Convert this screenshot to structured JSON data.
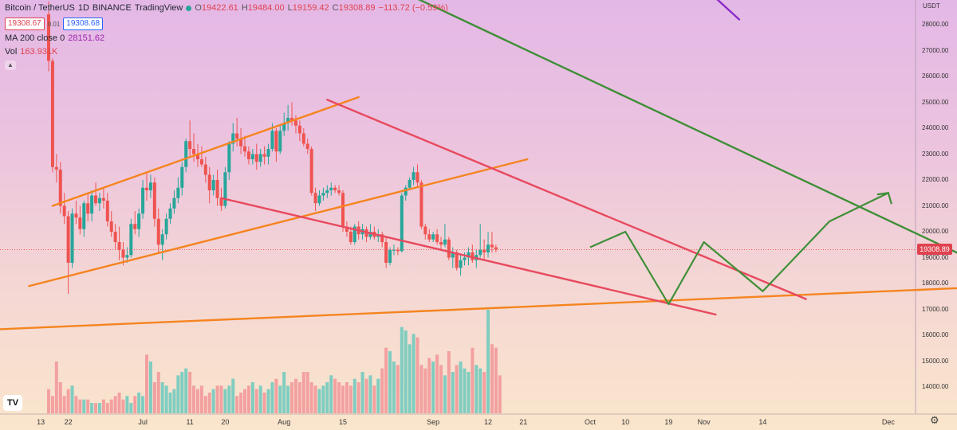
{
  "header": {
    "symbol": "Bitcoin / TetherUS",
    "interval": "1D",
    "exchange": "BINANCE",
    "source": "TradingView",
    "o_label": "O",
    "o_value": "19422.61",
    "h_label": "H",
    "h_value": "19484.00",
    "l_label": "L",
    "l_value": "19159.42",
    "c_label": "C",
    "c_value": "19308.89",
    "change": "−113.72 (−0.59%)",
    "bid": "19308.67",
    "spread": "0.01",
    "ask": "19308.68",
    "ma_label": "MA 200 close 0",
    "ma_value": "28151.62",
    "vol_label": "Vol",
    "vol_value": "163.931K",
    "collapse_icon": "chevron-up-icon"
  },
  "axis": {
    "unit": "USDT",
    "price_tag": "19308.89",
    "y_ticks": [
      "28000.00",
      "27000.00",
      "26000.00",
      "25000.00",
      "24000.00",
      "23000.00",
      "22000.00",
      "21000.00",
      "20000.00",
      "19000.00",
      "18000.00",
      "17000.00",
      "16000.00",
      "15000.00",
      "14000.00"
    ],
    "x_ticks": [
      "13",
      "22",
      "Jul",
      "11",
      "20",
      "Aug",
      "15",
      "Sep",
      "12",
      "21",
      "Oct",
      "10",
      "19",
      "Nov",
      "14",
      "Dec"
    ]
  },
  "chart_data": {
    "type": "candlestick",
    "symbol": "BTC/USDT",
    "interval": "1D",
    "ylim": [
      13300,
      29200
    ],
    "y_scale": "linear",
    "grid": false,
    "last_price": 19308.89,
    "candles": [
      {
        "o": 28400,
        "h": 28900,
        "l": 26200,
        "c": 26600
      },
      {
        "o": 26600,
        "h": 26700,
        "l": 22300,
        "c": 22500
      },
      {
        "o": 22500,
        "h": 23000,
        "l": 21900,
        "c": 22400
      },
      {
        "o": 22400,
        "h": 22700,
        "l": 20700,
        "c": 21000
      },
      {
        "o": 21000,
        "h": 21500,
        "l": 20300,
        "c": 20600
      },
      {
        "o": 20600,
        "h": 20800,
        "l": 17600,
        "c": 18800
      },
      {
        "o": 18800,
        "h": 20900,
        "l": 18600,
        "c": 20700
      },
      {
        "o": 20700,
        "h": 21200,
        "l": 20300,
        "c": 20550
      },
      {
        "o": 20550,
        "h": 21000,
        "l": 19900,
        "c": 20100
      },
      {
        "o": 20100,
        "h": 21200,
        "l": 19800,
        "c": 21100
      },
      {
        "o": 21100,
        "h": 21500,
        "l": 20400,
        "c": 20700
      },
      {
        "o": 20700,
        "h": 21600,
        "l": 20400,
        "c": 21400
      },
      {
        "o": 21400,
        "h": 21900,
        "l": 21000,
        "c": 21100
      },
      {
        "o": 21100,
        "h": 21500,
        "l": 20800,
        "c": 21300
      },
      {
        "o": 21300,
        "h": 21700,
        "l": 20900,
        "c": 21200
      },
      {
        "o": 21200,
        "h": 21500,
        "l": 20200,
        "c": 20400
      },
      {
        "o": 20400,
        "h": 20800,
        "l": 19800,
        "c": 20000
      },
      {
        "o": 20000,
        "h": 20300,
        "l": 19300,
        "c": 19600
      },
      {
        "o": 19600,
        "h": 20200,
        "l": 18900,
        "c": 19300
      },
      {
        "o": 19300,
        "h": 19600,
        "l": 18700,
        "c": 19000
      },
      {
        "o": 19000,
        "h": 19400,
        "l": 18800,
        "c": 19100
      },
      {
        "o": 19100,
        "h": 20500,
        "l": 19000,
        "c": 20300
      },
      {
        "o": 20300,
        "h": 20800,
        "l": 19900,
        "c": 20100
      },
      {
        "o": 20100,
        "h": 20900,
        "l": 19800,
        "c": 20700
      },
      {
        "o": 20700,
        "h": 22000,
        "l": 20500,
        "c": 21700
      },
      {
        "o": 21700,
        "h": 22300,
        "l": 21200,
        "c": 21600
      },
      {
        "o": 21600,
        "h": 22200,
        "l": 21300,
        "c": 21900
      },
      {
        "o": 21900,
        "h": 22100,
        "l": 20200,
        "c": 20500
      },
      {
        "o": 20500,
        "h": 20900,
        "l": 19200,
        "c": 19500
      },
      {
        "o": 19500,
        "h": 20100,
        "l": 18900,
        "c": 19900
      },
      {
        "o": 19900,
        "h": 20700,
        "l": 19700,
        "c": 20500
      },
      {
        "o": 20500,
        "h": 21100,
        "l": 20300,
        "c": 20900
      },
      {
        "o": 20900,
        "h": 21600,
        "l": 20700,
        "c": 21300
      },
      {
        "o": 21300,
        "h": 22100,
        "l": 21100,
        "c": 21700
      },
      {
        "o": 21700,
        "h": 22700,
        "l": 21400,
        "c": 22500
      },
      {
        "o": 22500,
        "h": 23600,
        "l": 22300,
        "c": 23500
      },
      {
        "o": 23500,
        "h": 24300,
        "l": 22900,
        "c": 23200
      },
      {
        "o": 23200,
        "h": 23800,
        "l": 22700,
        "c": 23000
      },
      {
        "o": 23000,
        "h": 23400,
        "l": 22500,
        "c": 22800
      },
      {
        "o": 22800,
        "h": 23300,
        "l": 22500,
        "c": 22600
      },
      {
        "o": 22600,
        "h": 22900,
        "l": 21900,
        "c": 22200
      },
      {
        "o": 22200,
        "h": 22500,
        "l": 21100,
        "c": 21600
      },
      {
        "o": 21600,
        "h": 22200,
        "l": 21400,
        "c": 22000
      },
      {
        "o": 22000,
        "h": 22400,
        "l": 21000,
        "c": 21300
      },
      {
        "o": 21300,
        "h": 21700,
        "l": 20800,
        "c": 21000
      },
      {
        "o": 21000,
        "h": 22500,
        "l": 20900,
        "c": 22300
      },
      {
        "o": 22300,
        "h": 23500,
        "l": 22000,
        "c": 23400
      },
      {
        "o": 23400,
        "h": 24200,
        "l": 23100,
        "c": 23800
      },
      {
        "o": 23800,
        "h": 24400,
        "l": 23300,
        "c": 23600
      },
      {
        "o": 23600,
        "h": 24000,
        "l": 23000,
        "c": 23300
      },
      {
        "o": 23300,
        "h": 23700,
        "l": 22900,
        "c": 23100
      },
      {
        "o": 23100,
        "h": 23300,
        "l": 22600,
        "c": 22800
      },
      {
        "o": 22800,
        "h": 23200,
        "l": 22600,
        "c": 23000
      },
      {
        "o": 23000,
        "h": 23400,
        "l": 22400,
        "c": 22700
      },
      {
        "o": 22700,
        "h": 23200,
        "l": 22500,
        "c": 23000
      },
      {
        "o": 23000,
        "h": 23300,
        "l": 22600,
        "c": 22900
      },
      {
        "o": 22900,
        "h": 23400,
        "l": 22600,
        "c": 23200
      },
      {
        "o": 23200,
        "h": 24200,
        "l": 23100,
        "c": 23900
      },
      {
        "o": 23900,
        "h": 24000,
        "l": 22700,
        "c": 23100
      },
      {
        "o": 23100,
        "h": 24100,
        "l": 23000,
        "c": 23900
      },
      {
        "o": 23900,
        "h": 24600,
        "l": 23700,
        "c": 24200
      },
      {
        "o": 24200,
        "h": 24900,
        "l": 23900,
        "c": 24400
      },
      {
        "o": 24400,
        "h": 25000,
        "l": 24100,
        "c": 24300
      },
      {
        "o": 24300,
        "h": 24500,
        "l": 23800,
        "c": 24100
      },
      {
        "o": 24100,
        "h": 24300,
        "l": 23500,
        "c": 23800
      },
      {
        "o": 23800,
        "h": 24000,
        "l": 23300,
        "c": 23400
      },
      {
        "o": 23400,
        "h": 23600,
        "l": 23000,
        "c": 23200
      },
      {
        "o": 23200,
        "h": 23300,
        "l": 21400,
        "c": 21500
      },
      {
        "o": 21500,
        "h": 21700,
        "l": 20800,
        "c": 21100
      },
      {
        "o": 21100,
        "h": 21600,
        "l": 21000,
        "c": 21400
      },
      {
        "o": 21400,
        "h": 21700,
        "l": 21200,
        "c": 21500
      },
      {
        "o": 21500,
        "h": 21800,
        "l": 21300,
        "c": 21600
      },
      {
        "o": 21600,
        "h": 21900,
        "l": 21400,
        "c": 21700
      },
      {
        "o": 21700,
        "h": 21800,
        "l": 21500,
        "c": 21600
      },
      {
        "o": 21600,
        "h": 21800,
        "l": 21400,
        "c": 21500
      },
      {
        "o": 21500,
        "h": 21600,
        "l": 20000,
        "c": 20200
      },
      {
        "o": 20200,
        "h": 20400,
        "l": 19800,
        "c": 20000
      },
      {
        "o": 20000,
        "h": 20200,
        "l": 19500,
        "c": 19600
      },
      {
        "o": 19600,
        "h": 20300,
        "l": 19500,
        "c": 20200
      },
      {
        "o": 20200,
        "h": 20400,
        "l": 19700,
        "c": 19900
      },
      {
        "o": 19900,
        "h": 20300,
        "l": 19700,
        "c": 20100
      },
      {
        "o": 20100,
        "h": 20200,
        "l": 19600,
        "c": 19800
      },
      {
        "o": 19800,
        "h": 20300,
        "l": 19700,
        "c": 20000
      },
      {
        "o": 20000,
        "h": 20200,
        "l": 19700,
        "c": 19800
      },
      {
        "o": 19800,
        "h": 20100,
        "l": 19600,
        "c": 19900
      },
      {
        "o": 19900,
        "h": 20000,
        "l": 19400,
        "c": 19600
      },
      {
        "o": 19600,
        "h": 19800,
        "l": 18600,
        "c": 18800
      },
      {
        "o": 18800,
        "h": 19400,
        "l": 18700,
        "c": 19300
      },
      {
        "o": 19300,
        "h": 19500,
        "l": 19100,
        "c": 19300
      },
      {
        "o": 19300,
        "h": 19400,
        "l": 19100,
        "c": 19250
      },
      {
        "o": 19250,
        "h": 21500,
        "l": 19200,
        "c": 21400
      },
      {
        "o": 21400,
        "h": 21800,
        "l": 21200,
        "c": 21700
      },
      {
        "o": 21700,
        "h": 22100,
        "l": 21600,
        "c": 22000
      },
      {
        "o": 22000,
        "h": 22500,
        "l": 21800,
        "c": 22300
      },
      {
        "o": 22300,
        "h": 22600,
        "l": 21700,
        "c": 21900
      },
      {
        "o": 21900,
        "h": 22000,
        "l": 20100,
        "c": 20200
      },
      {
        "o": 20200,
        "h": 20300,
        "l": 19700,
        "c": 19900
      },
      {
        "o": 19900,
        "h": 20100,
        "l": 19600,
        "c": 19700
      },
      {
        "o": 19700,
        "h": 20000,
        "l": 19600,
        "c": 19900
      },
      {
        "o": 19900,
        "h": 20100,
        "l": 19500,
        "c": 19600
      },
      {
        "o": 19600,
        "h": 19800,
        "l": 19300,
        "c": 19500
      },
      {
        "o": 19500,
        "h": 20300,
        "l": 19400,
        "c": 19700
      },
      {
        "o": 19700,
        "h": 19800,
        "l": 18900,
        "c": 19000
      },
      {
        "o": 19000,
        "h": 19400,
        "l": 18600,
        "c": 19200
      },
      {
        "o": 19200,
        "h": 19300,
        "l": 18500,
        "c": 18600
      },
      {
        "o": 18600,
        "h": 19100,
        "l": 18300,
        "c": 18900
      },
      {
        "o": 18900,
        "h": 19200,
        "l": 18700,
        "c": 19000
      },
      {
        "o": 19000,
        "h": 19400,
        "l": 18700,
        "c": 19200
      },
      {
        "o": 19200,
        "h": 19500,
        "l": 18800,
        "c": 18900
      },
      {
        "o": 18900,
        "h": 19300,
        "l": 18600,
        "c": 19100
      },
      {
        "o": 19100,
        "h": 20300,
        "l": 19000,
        "c": 19300
      },
      {
        "o": 19300,
        "h": 19700,
        "l": 18900,
        "c": 19200
      },
      {
        "o": 19200,
        "h": 20000,
        "l": 19000,
        "c": 19500
      },
      {
        "o": 19500,
        "h": 20000,
        "l": 19200,
        "c": 19400
      },
      {
        "o": 19400,
        "h": 19500,
        "l": 19200,
        "c": 19309
      }
    ],
    "volume": [
      7,
      5,
      15,
      9,
      5,
      7,
      8,
      5,
      4,
      4,
      4,
      3,
      3,
      3,
      4,
      3,
      4,
      5,
      6,
      4,
      5,
      3,
      5,
      6,
      5,
      17,
      15,
      9,
      12,
      9,
      8,
      6,
      7,
      11,
      12,
      13,
      12,
      8,
      7,
      8,
      5,
      6,
      7,
      8,
      8,
      7,
      8,
      10,
      5,
      6,
      7,
      8,
      9,
      7,
      8,
      6,
      7,
      9,
      10,
      8,
      12,
      8,
      9,
      10,
      9,
      12,
      12,
      9,
      8,
      7,
      8,
      9,
      11,
      10,
      9,
      8,
      9,
      8,
      10,
      9,
      12,
      10,
      11,
      8,
      10,
      13,
      19,
      18,
      15,
      14,
      25,
      24,
      20,
      23,
      22,
      14,
      13,
      16,
      15,
      17,
      14,
      11,
      18,
      12,
      14,
      15,
      13,
      12,
      19,
      14,
      13,
      12,
      30,
      20,
      19,
      11
    ],
    "lines": [
      {
        "name": "",
        "color": "#f5841f",
        "x1": 1,
        "y1": 21000,
        "x2": 79,
        "y2": 25200
      },
      {
        "name": "",
        "color": "#f5841f",
        "x1": -5,
        "y1": 17900,
        "x2": 122,
        "y2": 22800
      },
      {
        "name": "",
        "color": "#f5841f",
        "x1": -33,
        "y1": 16100,
        "x2": 275,
        "y2": 18100
      },
      {
        "name": "",
        "color": "#e8495e",
        "x1": 71,
        "y1": 25100,
        "x2": 193,
        "y2": 17400
      },
      {
        "name": "",
        "color": "#e8495e",
        "x1": 44,
        "y1": 21300,
        "x2": 170,
        "y2": 16800
      },
      {
        "name": "",
        "color": "#3f8f37",
        "x1": 80,
        "y1": 30000,
        "x2": 251,
        "y2": 17800
      },
      {
        "name": "",
        "color": "#8a2bc9",
        "x1": 163,
        "y1": 30000,
        "x2": 176,
        "y2": 28200
      }
    ],
    "projection": [
      {
        "x": 138,
        "y": 19400
      },
      {
        "x": 147,
        "y": 20000
      },
      {
        "x": 158,
        "y": 17200
      },
      {
        "x": 167,
        "y": 19600
      },
      {
        "x": 182,
        "y": 17700
      },
      {
        "x": 199,
        "y": 20400
      },
      {
        "x": 214,
        "y": 21500
      }
    ]
  }
}
